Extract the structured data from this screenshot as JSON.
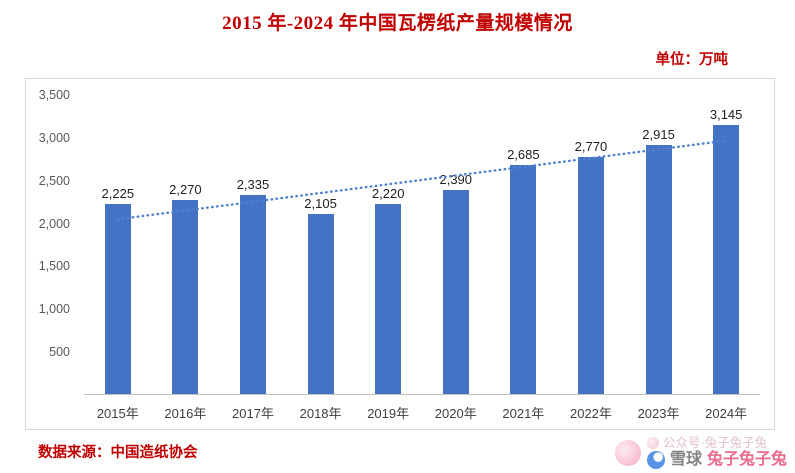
{
  "header": {
    "title": "2015 年-2024 年中国瓦楞纸产量规模情况",
    "unit_label": "单位：万吨"
  },
  "footer": {
    "source": "数据来源：中国造纸协会",
    "watermark_line1": "公众号·兔子兔子兔",
    "watermark_brand": "雪球",
    "watermark_name": "兔子兔子兔"
  },
  "chart_data": {
    "type": "bar",
    "title": "2015 年-2024 年中国瓦楞纸产量规模情况",
    "unit": "万吨",
    "categories": [
      "2015年",
      "2016年",
      "2017年",
      "2018年",
      "2019年",
      "2020年",
      "2021年",
      "2022年",
      "2023年",
      "2024年"
    ],
    "values": [
      2225,
      2270,
      2335,
      2105,
      2220,
      2390,
      2685,
      2770,
      2915,
      3145
    ],
    "value_labels": [
      "2,225",
      "2,270",
      "2,335",
      "2,105",
      "2,220",
      "2,390",
      "2,685",
      "2,770",
      "2,915",
      "3,145"
    ],
    "ylim": [
      0,
      3500
    ],
    "yticks": [
      500,
      1000,
      1500,
      2000,
      2500,
      3000,
      3500
    ],
    "ytick_labels": [
      "500",
      "1,000",
      "1,500",
      "2,000",
      "2,500",
      "3,000",
      "3,500"
    ],
    "grid": false,
    "legend": "none",
    "bar_color": "#4472C4",
    "label_color": "#1f1f1f",
    "trendline": {
      "type": "linear",
      "style": "dotted",
      "color": "#4f81cf"
    }
  }
}
